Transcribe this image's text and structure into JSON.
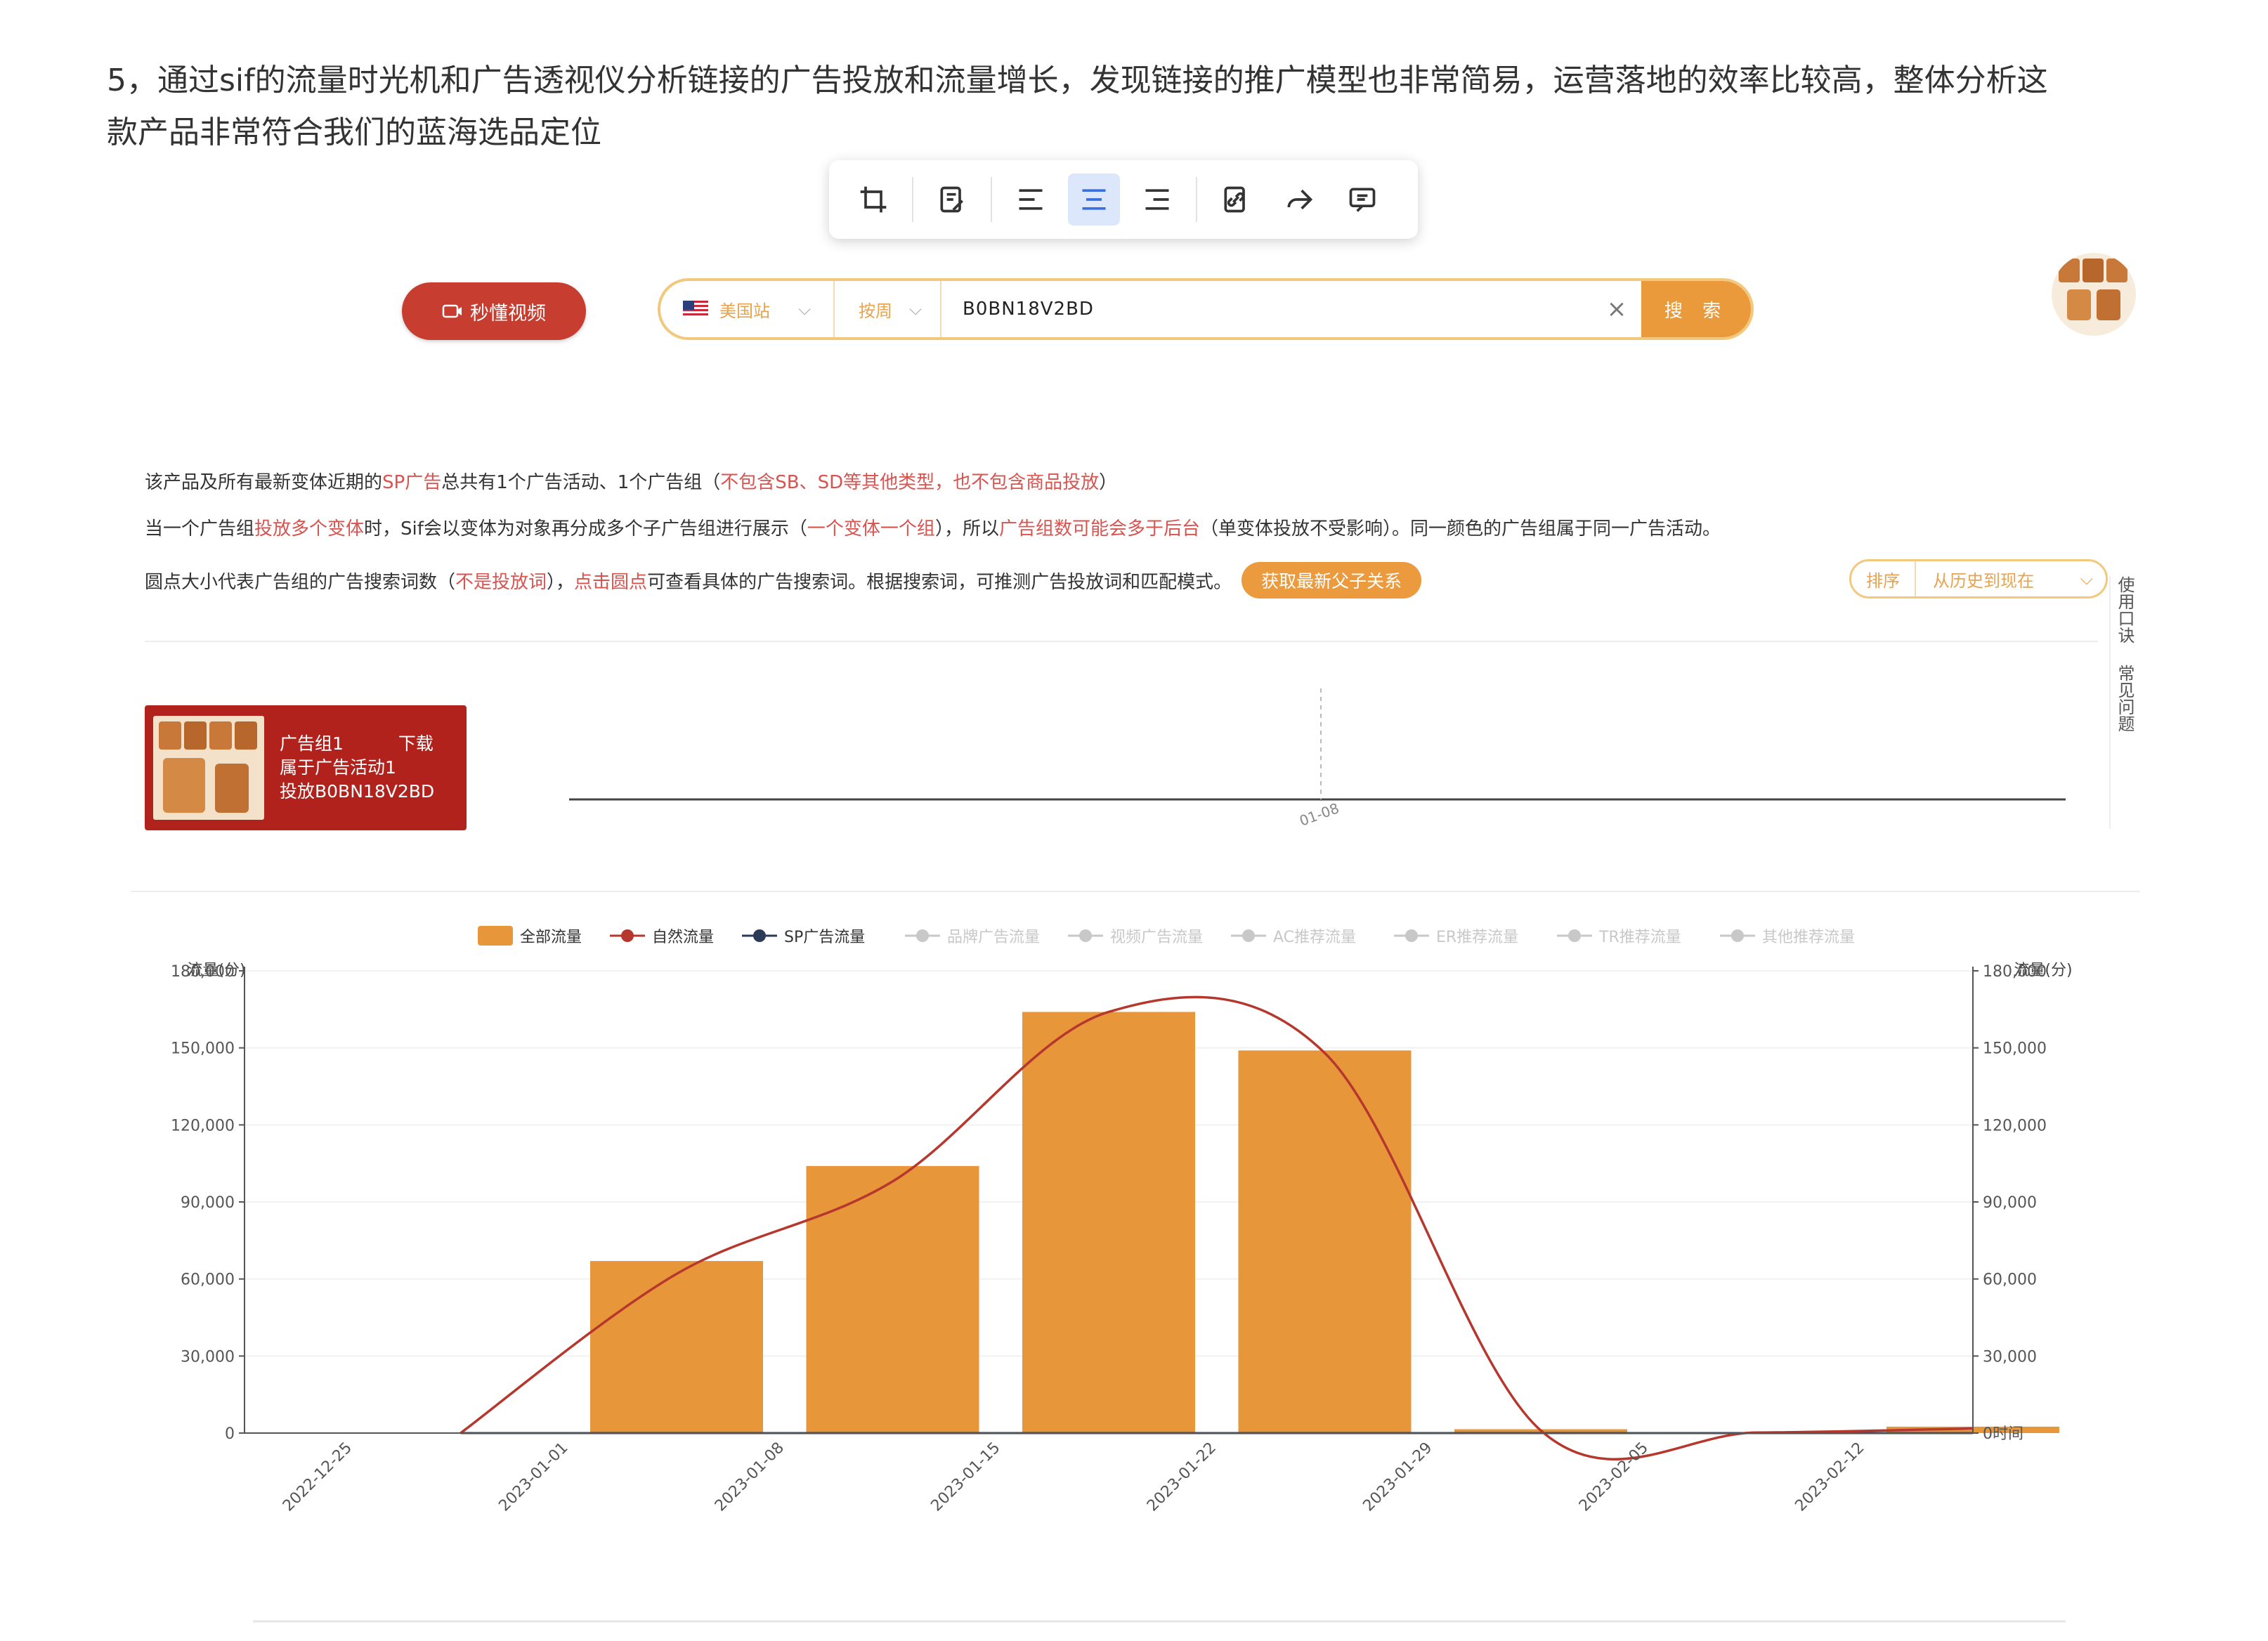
{
  "article": {
    "paragraph_line1": "5，通过sif的流量时光机和广告透视仪分析链接的广告投放和流量增长，发现链接的推广模型也非常简易，运营落地的效率比较高，整体分析这",
    "paragraph_line2": "款产品非常符合我们的蓝海选品定位"
  },
  "toolbar": {
    "icons": [
      "crop-icon",
      "edit-note-icon",
      "align-left-icon",
      "align-center-icon",
      "align-right-icon",
      "link-icon",
      "share-icon",
      "comment-icon"
    ],
    "active": "align-center-icon"
  },
  "search": {
    "video_button": "秒懂视频",
    "site": "美国站",
    "mode": "按周",
    "query": "B0BN18V2BD",
    "clear": "×",
    "go": "搜 索"
  },
  "notes": {
    "line1_a": "该产品及所有最新变体近期的",
    "line1_b": "SP广告",
    "line1_c": "总共有1个广告活动、1个广告组（",
    "line1_d": "不包含SB、SD等其他类型，也不包含商品投放",
    "line1_e": "）",
    "line2_a": "当一个广告组",
    "line2_b": "投放多个变体",
    "line2_c": "时，Sif会以变体为对象再分成多个子广告组进行展示（",
    "line2_d": "一个变体一个组",
    "line2_e": "），所以",
    "line2_f": "广告组数可能会多于后台",
    "line2_g": "（单变体投放不受影响）。同一颜色的广告组属于同一广告活动。",
    "line3_a": "圆点大小代表广告组的广告搜索词数（",
    "line3_b": "不是投放词",
    "line3_c": "），",
    "line3_d": "点击圆点",
    "line3_e": "可查看具体的广告搜索词。根据搜索词，可推测广告投放词和匹配模式。",
    "get_button": "获取最新父子关系",
    "sort_label": "排序",
    "sort_value": "从历史到现在"
  },
  "adgroup_card": {
    "title": "广告组1",
    "download": "下载",
    "campaign": "属于广告活动1",
    "target": "投放B0BN18V2BD"
  },
  "timeline": {
    "tick_label": "01-08"
  },
  "side_tab": {
    "text1": "使用口诀",
    "text2": "常见问题"
  },
  "colors": {
    "brand_red": "#c73d30",
    "accent_orange": "#ea9a3a",
    "bar": "#e8963a",
    "natural_line": "#b5372d",
    "sp_line": "#2b3a55",
    "inactive": "#c8c8c8"
  },
  "chart_data": {
    "type": "bar",
    "legend": [
      "全部流量",
      "自然流量",
      "SP广告流量",
      "品牌广告流量",
      "视频广告流量",
      "AC推荐流量",
      "ER推荐流量",
      "TR推荐流量",
      "其他推荐流量"
    ],
    "legend_active": [
      true,
      true,
      true,
      false,
      false,
      false,
      false,
      false,
      false
    ],
    "legend_placement": "top-center",
    "ylabel_left": "流量(分)",
    "ylabel_right": "流量(分)",
    "xlabel_right": "时间",
    "ylim": [
      0,
      180000
    ],
    "yticks": [
      "0",
      "30,000",
      "60,000",
      "90,000",
      "120,000",
      "150,000",
      "180,000"
    ],
    "yticks_right": [
      "0",
      "30,000",
      "60,000",
      "90,000",
      "120,000",
      "150,000",
      "180,000"
    ],
    "categories": [
      "2022-12-25",
      "2023-01-01",
      "2023-01-08",
      "2023-01-15",
      "2023-01-22",
      "2023-01-29",
      "2023-02-05",
      "2023-02-12"
    ],
    "series": [
      {
        "name": "全部流量",
        "kind": "bar",
        "values": [
          0,
          67000,
          104000,
          164000,
          149000,
          1500,
          300,
          2500
        ]
      },
      {
        "name": "自然流量",
        "kind": "line",
        "values": [
          0,
          62000,
          98000,
          164000,
          148000,
          1000,
          200,
          1800
        ]
      },
      {
        "name": "SP广告流量",
        "kind": "line",
        "values": [
          0,
          0,
          0,
          0,
          0,
          0,
          0,
          0
        ]
      }
    ]
  }
}
